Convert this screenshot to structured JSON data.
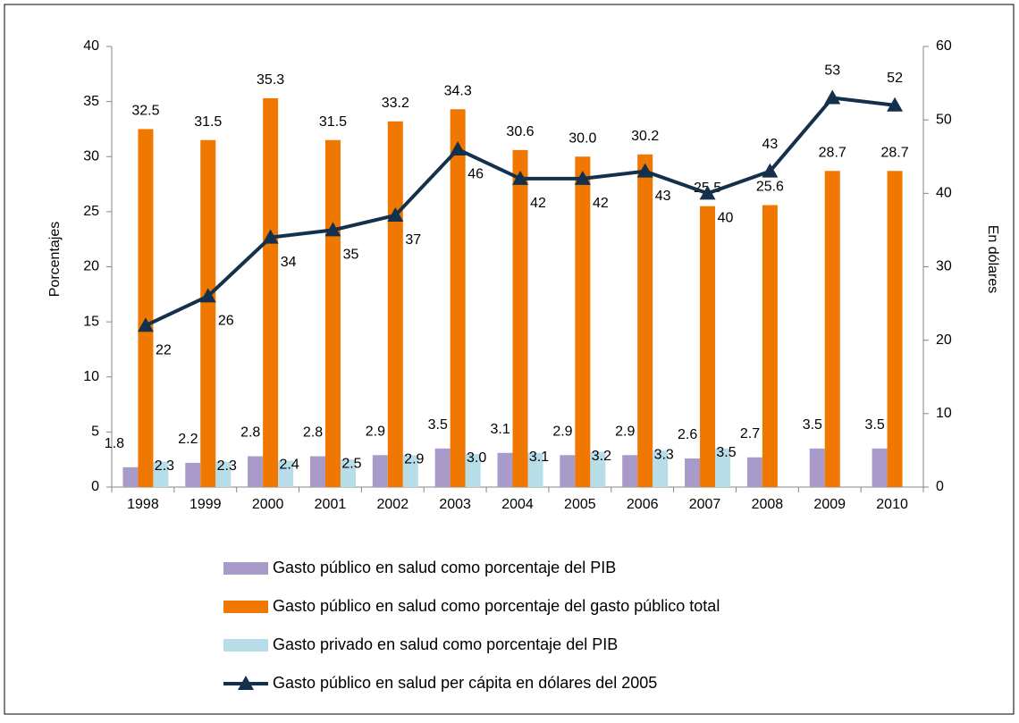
{
  "chart_data": {
    "type": "bar",
    "categories": [
      "1998",
      "1999",
      "2000",
      "2001",
      "2002",
      "2003",
      "2004",
      "2005",
      "2006",
      "2007",
      "2008",
      "2009",
      "2010"
    ],
    "ylabel": "Porcentajes",
    "y2label": "En dólares",
    "ylim": [
      0,
      40
    ],
    "yticks": [
      0,
      5,
      10,
      15,
      20,
      25,
      30,
      35,
      40
    ],
    "y2lim": [
      0,
      60
    ],
    "y2ticks": [
      0,
      10,
      20,
      30,
      40,
      50,
      60
    ],
    "series": [
      {
        "name": "Gasto público en salud como porcentaje del PIB",
        "type": "bar",
        "color": "#a99bc9",
        "values": [
          1.8,
          2.2,
          2.8,
          2.8,
          2.9,
          3.5,
          3.1,
          2.9,
          2.9,
          2.6,
          2.7,
          3.5,
          3.5
        ]
      },
      {
        "name": "Gasto público en salud como porcentaje del gasto público total",
        "type": "bar",
        "color": "#f07800",
        "values": [
          32.5,
          31.5,
          35.3,
          31.5,
          33.2,
          34.3,
          30.6,
          30.0,
          30.2,
          25.5,
          25.6,
          28.7,
          28.7
        ],
        "value_labels": [
          "32.5",
          "31.5",
          "35.3",
          "31.5",
          "33.2",
          "34.3",
          "30.6",
          "30.0",
          "30.2",
          "25.5",
          "25.6",
          "28.7",
          "28.7"
        ]
      },
      {
        "name": "Gasto privado en salud como porcentaje del PIB",
        "type": "bar",
        "color": "#b7dde8",
        "values": [
          2.3,
          2.3,
          2.4,
          2.5,
          2.9,
          3.0,
          3.1,
          3.2,
          3.3,
          3.5,
          null,
          null,
          null
        ],
        "value_labels": [
          "2.3",
          "2.3",
          "2.4",
          "2.5",
          "2.9",
          "3.0",
          "3.1",
          "3.2",
          "3.3",
          "3.5",
          null,
          null,
          null
        ]
      },
      {
        "name": "Gasto público en salud per cápita en dólares del 2005",
        "type": "line",
        "axis": "y2",
        "color": "#14304d",
        "values": [
          22,
          26,
          34,
          35,
          37,
          46,
          42,
          42,
          43,
          40,
          43,
          53,
          52
        ]
      }
    ]
  }
}
